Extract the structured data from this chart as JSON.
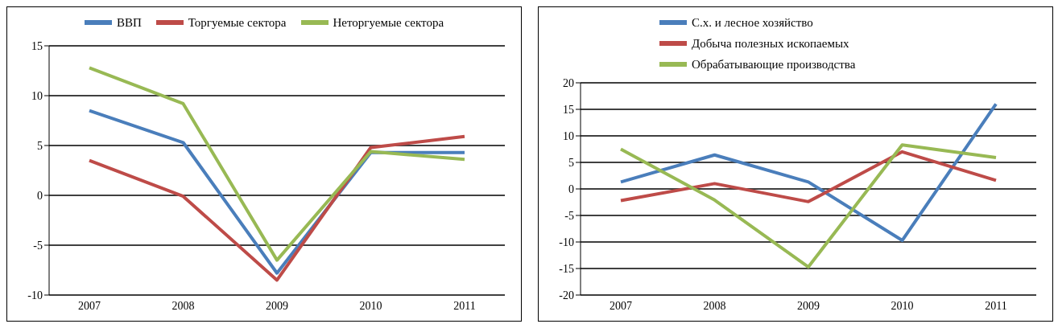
{
  "chart_data": [
    {
      "type": "line",
      "categories": [
        "2007",
        "2008",
        "2009",
        "2010",
        "2011"
      ],
      "series": [
        {
          "name": "ВВП",
          "color": "#4a7ebb",
          "values": [
            8.5,
            5.3,
            -7.8,
            4.3,
            4.3
          ]
        },
        {
          "name": "Торгуемые сектора",
          "color": "#be4b48",
          "values": [
            3.5,
            -0.1,
            -8.5,
            4.8,
            5.9
          ]
        },
        {
          "name": "Неторгуемые сектора",
          "color": "#98b954",
          "values": [
            12.8,
            9.2,
            -6.5,
            4.4,
            3.6
          ]
        }
      ],
      "ylim": [
        -10,
        15
      ],
      "yticks": [
        -10,
        -5,
        0,
        5,
        10,
        15
      ],
      "grid": "y",
      "legend": "top",
      "marker": "none",
      "line_style": "solid"
    },
    {
      "type": "line",
      "categories": [
        "2007",
        "2008",
        "2009",
        "2010",
        "2011"
      ],
      "series": [
        {
          "name": "С.х. и лесное хозяйство",
          "color": "#4a7ebb",
          "values": [
            1.3,
            6.4,
            1.3,
            -9.7,
            16
          ]
        },
        {
          "name": "Добыча полезных ископаемых",
          "color": "#be4b48",
          "values": [
            -2.2,
            1.0,
            -2.4,
            7.0,
            1.6
          ]
        },
        {
          "name": "Обрабатывающие производства",
          "color": "#98b954",
          "values": [
            7.5,
            -2.1,
            -14.7,
            8.3,
            5.9
          ]
        }
      ],
      "ylim": [
        -20,
        20
      ],
      "yticks": [
        -20,
        -15,
        -10,
        -5,
        0,
        5,
        10,
        15,
        20
      ],
      "grid": "y",
      "legend": "top left",
      "marker": "none",
      "line_style": "solid"
    }
  ]
}
